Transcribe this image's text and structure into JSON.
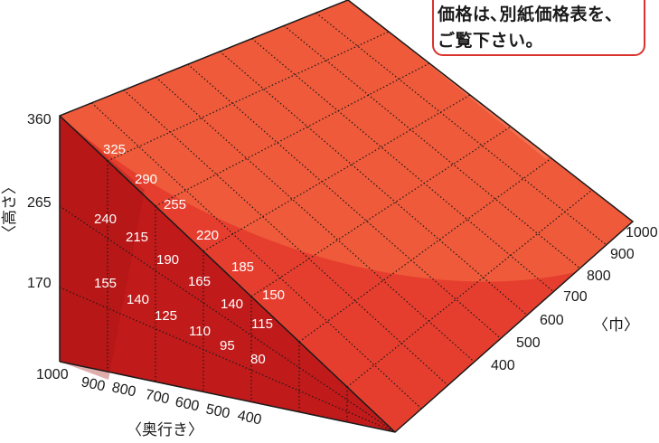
{
  "note": {
    "line1": "価格は､別紙価格表を､",
    "line2": "ご覧下さい。"
  },
  "axes": {
    "height_label": "〈高さ〉",
    "depth_label": "〈奥行き〉",
    "width_label": "〈巾〉"
  },
  "height_ticks": [
    "360",
    "265",
    "170"
  ],
  "depth_ticks": [
    "1000",
    "900",
    "800",
    "700",
    "600",
    "500",
    "400"
  ],
  "width_ticks": [
    "1000",
    "900",
    "800",
    "700",
    "600",
    "500",
    "400"
  ],
  "side_values": [
    "325",
    "290",
    "255",
    "220",
    "185",
    "150",
    "240",
    "215",
    "190",
    "165",
    "140",
    "115",
    "155",
    "140",
    "125",
    "110",
    "95",
    "80"
  ],
  "colors": {
    "top_face": "#e63e2e",
    "side_face": "#c11a1a",
    "highlight": "#f2643f",
    "outline": "#1a1a1a",
    "callout_border": "#d9332b"
  }
}
